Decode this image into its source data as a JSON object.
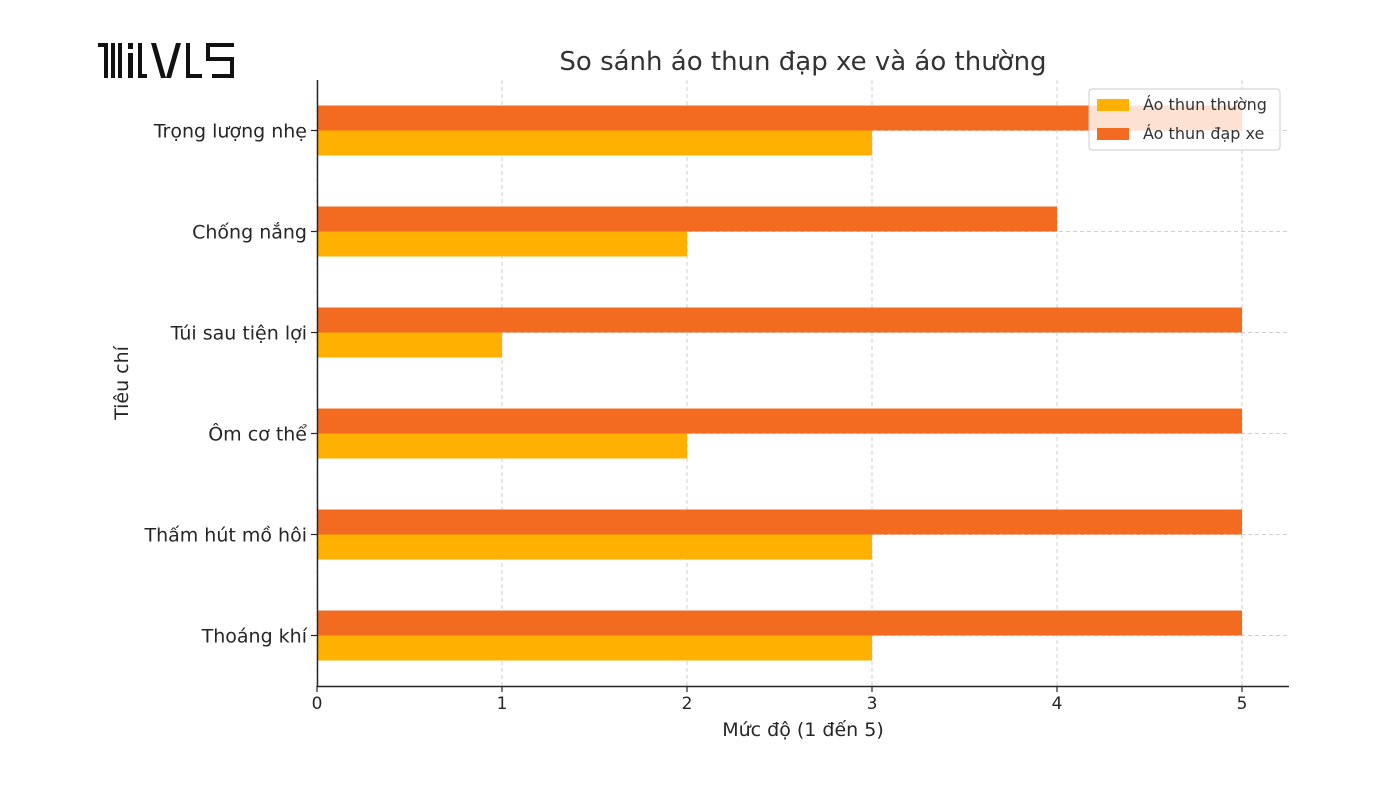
{
  "logo": {
    "text": "MIVL5"
  },
  "chart_data": {
    "type": "bar",
    "orientation": "horizontal",
    "title": "So sánh áo thun đạp xe và áo thường",
    "xlabel": "Mức độ (1 đến 5)",
    "ylabel": "Tiêu chí",
    "categories": [
      "Thoáng khí",
      "Thấm hút mồ hôi",
      "Ôm cơ thể",
      "Túi sau tiện lợi",
      "Chống nắng",
      "Trọng lượng nhẹ"
    ],
    "series": [
      {
        "name": "Áo thun thường",
        "color": "#FFB000",
        "values": [
          3,
          3,
          2,
          1,
          2,
          3
        ]
      },
      {
        "name": "Áo thun đạp xe",
        "color": "#F26B21",
        "values": [
          5,
          5,
          5,
          5,
          4,
          5
        ]
      }
    ],
    "xlim": [
      0,
      5.25
    ],
    "xticks": [
      0,
      1,
      2,
      3,
      4,
      5
    ],
    "grid": true,
    "legend_position": "top-right"
  }
}
